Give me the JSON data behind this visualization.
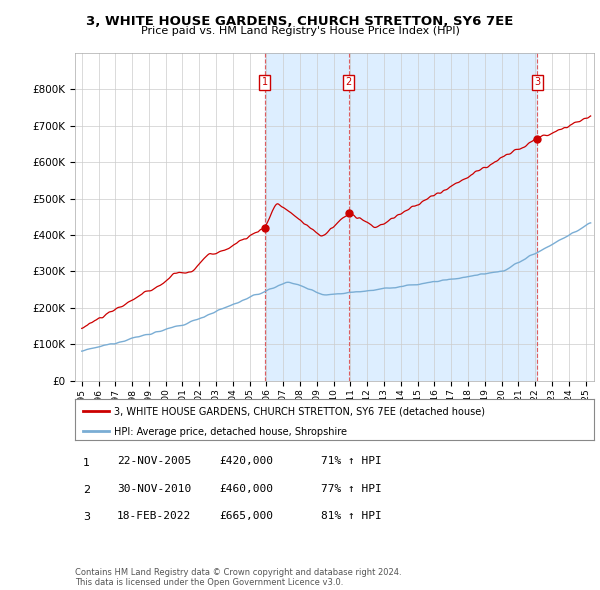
{
  "title": "3, WHITE HOUSE GARDENS, CHURCH STRETTON, SY6 7EE",
  "subtitle": "Price paid vs. HM Land Registry's House Price Index (HPI)",
  "legend_line1": "3, WHITE HOUSE GARDENS, CHURCH STRETTON, SY6 7EE (detached house)",
  "legend_line2": "HPI: Average price, detached house, Shropshire",
  "footer": "Contains HM Land Registry data © Crown copyright and database right 2024.\nThis data is licensed under the Open Government Licence v3.0.",
  "transactions": [
    {
      "num": 1,
      "date": "22-NOV-2005",
      "price": 420000,
      "hpi_pct": "71%",
      "x_year": 2005.9
    },
    {
      "num": 2,
      "date": "30-NOV-2010",
      "price": 460000,
      "hpi_pct": "77%",
      "x_year": 2010.9
    },
    {
      "num": 3,
      "date": "18-FEB-2022",
      "price": 665000,
      "hpi_pct": "81%",
      "x_year": 2022.12
    }
  ],
  "red_color": "#cc0000",
  "blue_color": "#7aadd4",
  "shade_color": "#ddeeff",
  "dashed_vline_color": "#dd4444",
  "background_color": "#ffffff",
  "grid_color": "#cccccc",
  "ylim": [
    0,
    900000
  ],
  "xlim_start": 1994.6,
  "xlim_end": 2025.5,
  "yticks": [
    0,
    100000,
    200000,
    300000,
    400000,
    500000,
    600000,
    700000,
    800000
  ],
  "ytick_labels": [
    "£0",
    "£100K",
    "£200K",
    "£300K",
    "£400K",
    "£500K",
    "£600K",
    "£700K",
    "£800K"
  ],
  "xtick_years": [
    1995,
    1996,
    1997,
    1998,
    1999,
    2000,
    2001,
    2002,
    2003,
    2004,
    2005,
    2006,
    2007,
    2008,
    2009,
    2010,
    2011,
    2012,
    2013,
    2014,
    2015,
    2016,
    2017,
    2018,
    2019,
    2020,
    2021,
    2022,
    2023,
    2024,
    2025
  ]
}
